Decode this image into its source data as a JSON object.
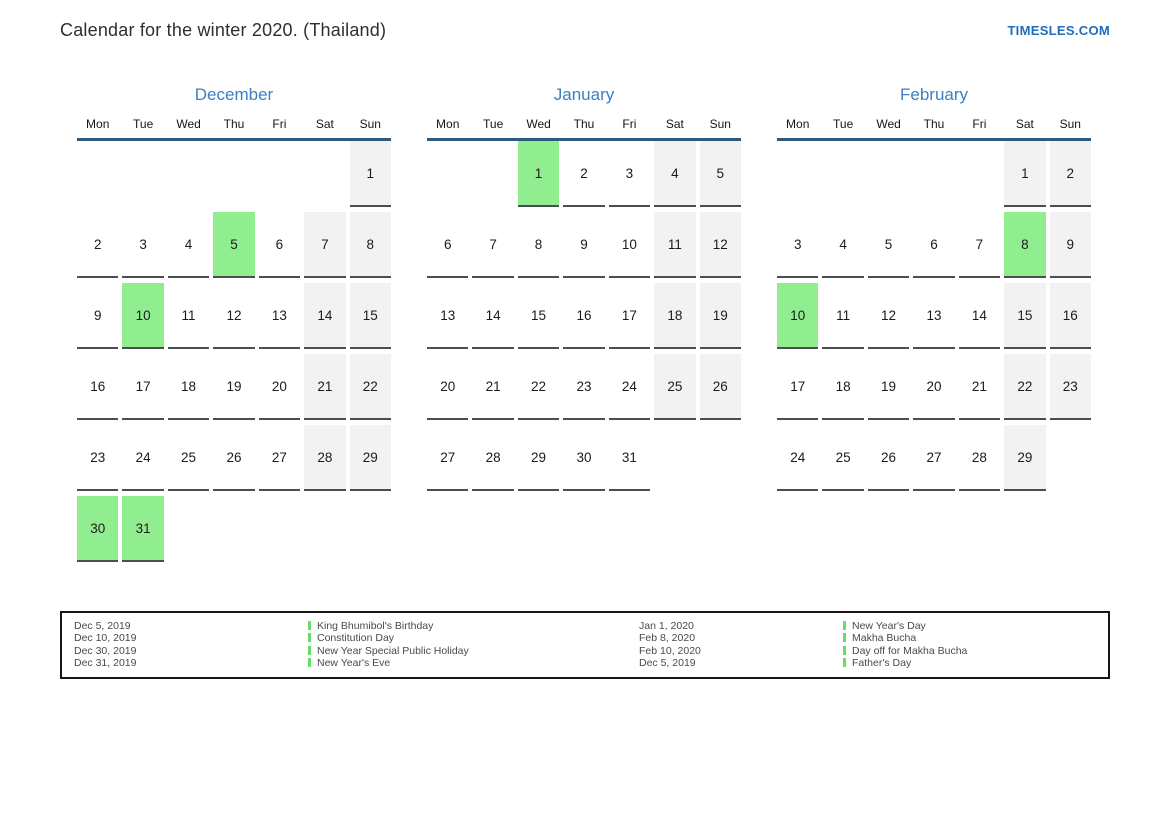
{
  "header": {
    "title": "Calendar for the winter 2020. (Thailand)",
    "site": "TIMESLES.COM"
  },
  "colors": {
    "title_blue": "#3b7fc4",
    "site_blue": "#1f6db8",
    "rule_blue": "#2e5a7d",
    "holiday_green": "#90ee90",
    "weekend_gray": "#f2f2f2",
    "marker_green": "#66dd66"
  },
  "weekdays": [
    "Mon",
    "Tue",
    "Wed",
    "Thu",
    "Fri",
    "Sat",
    "Sun"
  ],
  "months": [
    {
      "name": "December",
      "weeks": [
        [
          null,
          null,
          null,
          null,
          null,
          null,
          {
            "d": 1,
            "t": "weekend"
          }
        ],
        [
          {
            "d": 2
          },
          {
            "d": 3
          },
          {
            "d": 4
          },
          {
            "d": 5,
            "t": "holiday"
          },
          {
            "d": 6
          },
          {
            "d": 7,
            "t": "weekend"
          },
          {
            "d": 8,
            "t": "weekend"
          }
        ],
        [
          {
            "d": 9
          },
          {
            "d": 10,
            "t": "holiday"
          },
          {
            "d": 11
          },
          {
            "d": 12
          },
          {
            "d": 13
          },
          {
            "d": 14,
            "t": "weekend"
          },
          {
            "d": 15,
            "t": "weekend"
          }
        ],
        [
          {
            "d": 16
          },
          {
            "d": 17
          },
          {
            "d": 18
          },
          {
            "d": 19
          },
          {
            "d": 20
          },
          {
            "d": 21,
            "t": "weekend"
          },
          {
            "d": 22,
            "t": "weekend"
          }
        ],
        [
          {
            "d": 23
          },
          {
            "d": 24
          },
          {
            "d": 25
          },
          {
            "d": 26
          },
          {
            "d": 27
          },
          {
            "d": 28,
            "t": "weekend"
          },
          {
            "d": 29,
            "t": "weekend"
          }
        ],
        [
          {
            "d": 30,
            "t": "holiday"
          },
          {
            "d": 31,
            "t": "holiday"
          },
          null,
          null,
          null,
          null,
          null
        ]
      ]
    },
    {
      "name": "January",
      "weeks": [
        [
          null,
          null,
          {
            "d": 1,
            "t": "holiday"
          },
          {
            "d": 2
          },
          {
            "d": 3
          },
          {
            "d": 4,
            "t": "weekend"
          },
          {
            "d": 5,
            "t": "weekend"
          }
        ],
        [
          {
            "d": 6
          },
          {
            "d": 7
          },
          {
            "d": 8
          },
          {
            "d": 9
          },
          {
            "d": 10
          },
          {
            "d": 11,
            "t": "weekend"
          },
          {
            "d": 12,
            "t": "weekend"
          }
        ],
        [
          {
            "d": 13
          },
          {
            "d": 14
          },
          {
            "d": 15
          },
          {
            "d": 16
          },
          {
            "d": 17
          },
          {
            "d": 18,
            "t": "weekend"
          },
          {
            "d": 19,
            "t": "weekend"
          }
        ],
        [
          {
            "d": 20
          },
          {
            "d": 21
          },
          {
            "d": 22
          },
          {
            "d": 23
          },
          {
            "d": 24
          },
          {
            "d": 25,
            "t": "weekend"
          },
          {
            "d": 26,
            "t": "weekend"
          }
        ],
        [
          {
            "d": 27
          },
          {
            "d": 28
          },
          {
            "d": 29
          },
          {
            "d": 30
          },
          {
            "d": 31
          },
          null,
          null
        ]
      ]
    },
    {
      "name": "February",
      "weeks": [
        [
          null,
          null,
          null,
          null,
          null,
          {
            "d": 1,
            "t": "weekend"
          },
          {
            "d": 2,
            "t": "weekend"
          }
        ],
        [
          {
            "d": 3
          },
          {
            "d": 4
          },
          {
            "d": 5
          },
          {
            "d": 6
          },
          {
            "d": 7
          },
          {
            "d": 8,
            "t": "holiday"
          },
          {
            "d": 9,
            "t": "weekend"
          }
        ],
        [
          {
            "d": 10,
            "t": "holiday"
          },
          {
            "d": 11
          },
          {
            "d": 12
          },
          {
            "d": 13
          },
          {
            "d": 14
          },
          {
            "d": 15,
            "t": "weekend"
          },
          {
            "d": 16,
            "t": "weekend"
          }
        ],
        [
          {
            "d": 17
          },
          {
            "d": 18
          },
          {
            "d": 19
          },
          {
            "d": 20
          },
          {
            "d": 21
          },
          {
            "d": 22,
            "t": "weekend"
          },
          {
            "d": 23,
            "t": "weekend"
          }
        ],
        [
          {
            "d": 24
          },
          {
            "d": 25
          },
          {
            "d": 26
          },
          {
            "d": 27
          },
          {
            "d": 28
          },
          {
            "d": 29,
            "t": "weekend"
          },
          null
        ]
      ]
    }
  ],
  "legend": {
    "groups": [
      {
        "entries": [
          {
            "date": "Dec 5, 2019",
            "name": "King Bhumibol's Birthday"
          },
          {
            "date": "Dec 10, 2019",
            "name": "Constitution Day"
          },
          {
            "date": "Dec 30, 2019",
            "name": "New Year Special Public Holiday"
          },
          {
            "date": "Dec 31, 2019",
            "name": "New Year's Eve"
          }
        ]
      },
      {
        "entries": [
          {
            "date": "Jan 1, 2020",
            "name": "New Year's Day"
          },
          {
            "date": "Feb 8, 2020",
            "name": "Makha Bucha"
          },
          {
            "date": "Feb 10, 2020",
            "name": "Day off for Makha Bucha"
          },
          {
            "date": "Dec 5, 2019",
            "name": "Father's Day"
          }
        ]
      }
    ]
  }
}
